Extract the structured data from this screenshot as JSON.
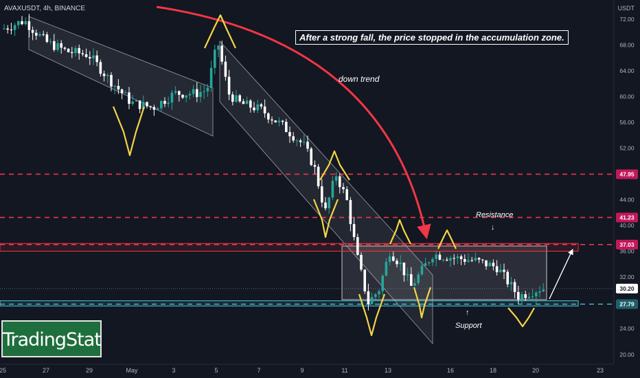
{
  "header": {
    "symbol": "AVAXUSDT, 4h, BINANCE",
    "currency": "USDT"
  },
  "annotations": {
    "headline": "After a strong fall, the price stopped in the accumulation zone.",
    "down_trend": "down trend",
    "resistance": "Resistance",
    "support": "Support",
    "resistance_arrow": "↓",
    "support_arrow": "↑"
  },
  "branding": {
    "logo_text": "TradingStat"
  },
  "colors": {
    "background": "#131722",
    "bull": "#26a69a",
    "bear": "#ffffff",
    "level_line": "#f23645",
    "support_line": "#4dd0e1",
    "trend_arrow": "#f23645",
    "zigzag": "#f5d547",
    "logo_bg": "#1f6e3d"
  },
  "chart_data": {
    "type": "candlestick",
    "title": "AVAXUSDT, 4h, BINANCE",
    "x_ticks": [
      "25",
      "27",
      "29",
      "May",
      "3",
      "5",
      "7",
      "9",
      "11",
      "13",
      "16",
      "18",
      "20",
      "23"
    ],
    "y_ticks": [
      72,
      68,
      64,
      60,
      56,
      52,
      44,
      40,
      36,
      32,
      24,
      20
    ],
    "y_tick_labels": [
      "72.00",
      "68.00",
      "64.00",
      "60.00",
      "56.00",
      "52.00",
      "44.00",
      "40.00",
      "36.00",
      "32.00",
      "24.00",
      "20.00"
    ],
    "ylim": [
      19.5,
      74.5
    ],
    "last_price": {
      "label": "30.20",
      "value": 30.2
    },
    "levels": [
      {
        "label": "47.95",
        "value": 47.95,
        "kind": "dashed"
      },
      {
        "label": "41.23",
        "value": 41.23,
        "kind": "dashed"
      },
      {
        "label": "37.03",
        "value": 37.03,
        "kind": "dashed"
      },
      {
        "label": "27.79",
        "value": 27.79,
        "kind": "support"
      }
    ],
    "zones": [
      {
        "name": "resistance band",
        "low": 36.0,
        "high": 37.2
      },
      {
        "name": "support band",
        "low": 27.5,
        "high": 28.3
      },
      {
        "name": "accumulation box",
        "low": 28.2,
        "high": 36.9
      }
    ],
    "price_path": [
      {
        "x": "25",
        "y": 70.5
      },
      {
        "x": "26",
        "y": 71.8
      },
      {
        "x": "27",
        "y": 68.5
      },
      {
        "x": "28",
        "y": 67.0
      },
      {
        "x": "29",
        "y": 66.5
      },
      {
        "x": "30",
        "y": 62.5
      },
      {
        "x": "May",
        "y": 59.0
      },
      {
        "x": "2",
        "y": 58.3
      },
      {
        "x": "3",
        "y": 60.5
      },
      {
        "x": "4",
        "y": 60.5
      },
      {
        "x": "4.5",
        "y": 61.0
      },
      {
        "x": "5",
        "y": 68.5
      },
      {
        "x": "5.5",
        "y": 60.5
      },
      {
        "x": "6",
        "y": 59.0
      },
      {
        "x": "7",
        "y": 58.0
      },
      {
        "x": "8",
        "y": 55.5
      },
      {
        "x": "9",
        "y": 52.5
      },
      {
        "x": "9.5",
        "y": 49.0
      },
      {
        "x": "10",
        "y": 42.0
      },
      {
        "x": "10.5",
        "y": 48.0
      },
      {
        "x": "11",
        "y": 44.0
      },
      {
        "x": "11.5",
        "y": 35.0
      },
      {
        "x": "12",
        "y": 28.0
      },
      {
        "x": "12.5",
        "y": 30.0
      },
      {
        "x": "13",
        "y": 36.0
      },
      {
        "x": "13.5",
        "y": 34.0
      },
      {
        "x": "14",
        "y": 30.5
      },
      {
        "x": "15",
        "y": 35.5
      },
      {
        "x": "16",
        "y": 35.0
      },
      {
        "x": "17",
        "y": 34.5
      },
      {
        "x": "18",
        "y": 33.5
      },
      {
        "x": "19",
        "y": 29.0
      },
      {
        "x": "20",
        "y": 30.2
      }
    ]
  }
}
